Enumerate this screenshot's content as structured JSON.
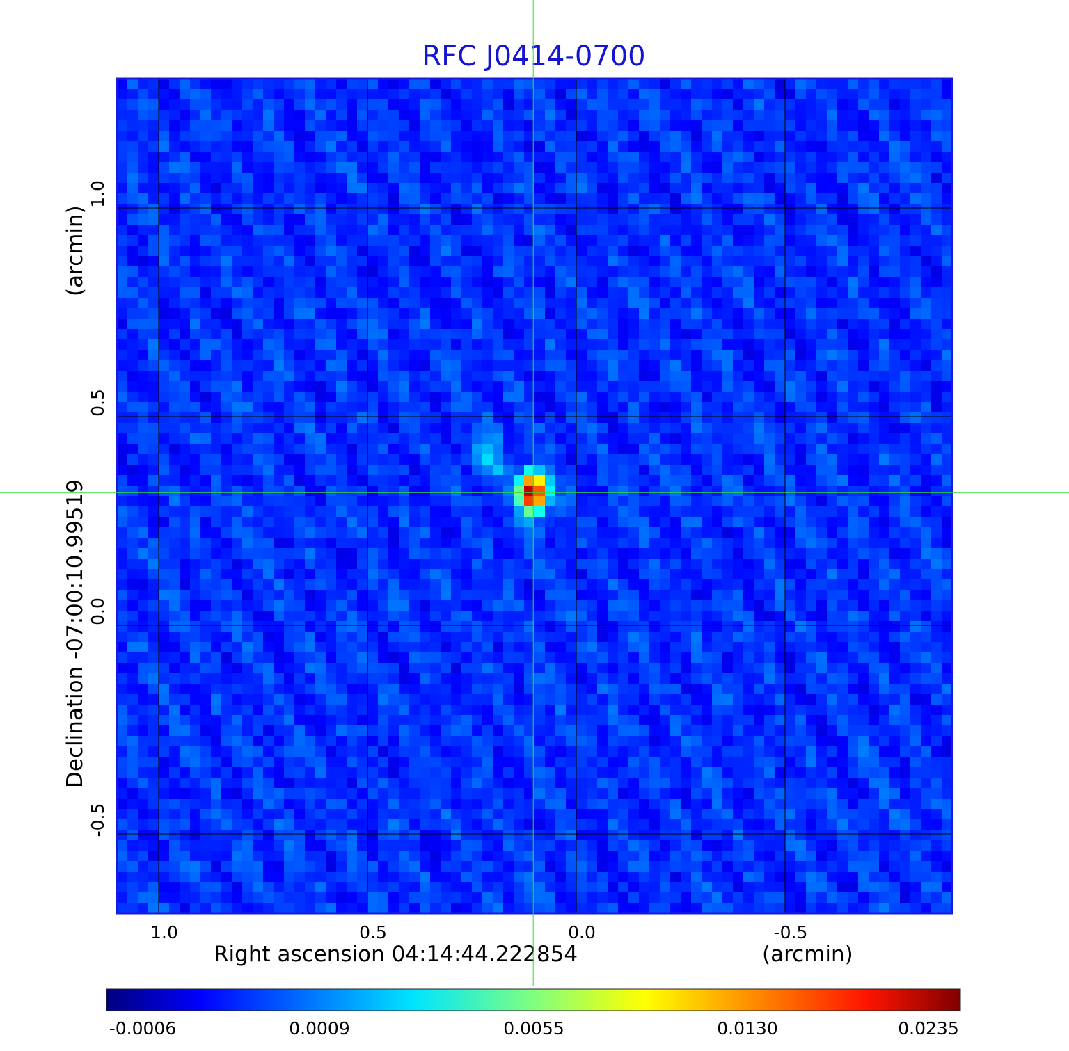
{
  "chart_data": {
    "type": "heatmap",
    "title": "RFC J0414-0700",
    "xlabel": "Right ascension  04:14:44.222854",
    "xunit": "(arcmin)",
    "ylabel": "Declination  -07:00:10.99519",
    "yunit": "(arcmin)",
    "x_ticks": [
      "1.0",
      "0.5",
      "0.0",
      "-0.5"
    ],
    "y_ticks": [
      "1.0",
      "0.5",
      "0.0",
      "-0.5"
    ],
    "x_tick_values": [
      1.0,
      0.5,
      0.0,
      -0.5
    ],
    "y_tick_values": [
      1.0,
      0.5,
      0.0,
      -0.5
    ],
    "xlim": [
      1.1,
      -0.9
    ],
    "ylim": [
      -0.69,
      1.31
    ],
    "grid": true,
    "crosshair": {
      "x": 0.103,
      "y": 0.318,
      "color": "#33dd33"
    },
    "peak_position": {
      "x": 0.103,
      "y": 0.318
    },
    "colormap": "jet",
    "colorbar_ticks": [
      "-0.0006",
      "0.0009",
      "0.0055",
      "0.0130",
      "0.0235"
    ],
    "colorbar_values": [
      -0.0006,
      0.0009,
      0.0055,
      0.013,
      0.0235
    ],
    "peak_value": 0.0235,
    "frame_color": "#1a1add"
  }
}
